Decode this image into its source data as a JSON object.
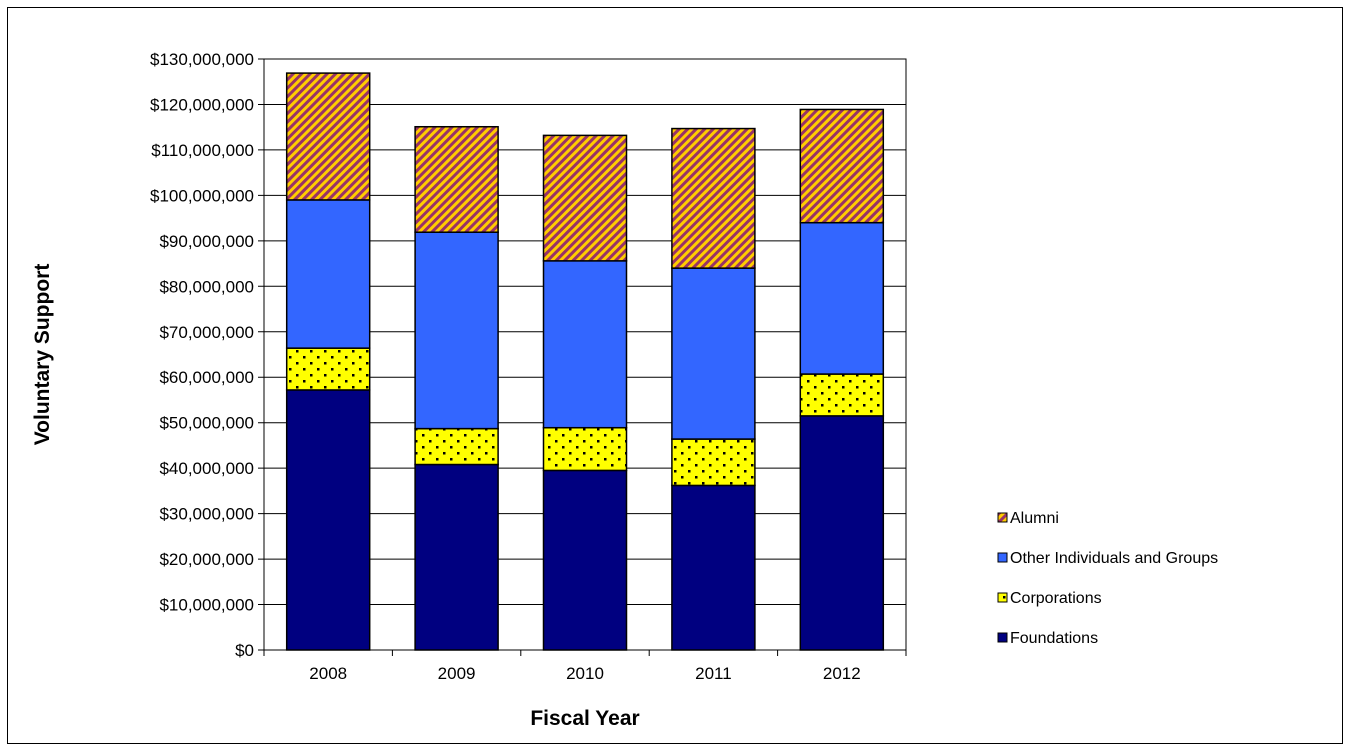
{
  "chart_data": {
    "type": "bar",
    "stacked": true,
    "title": "",
    "xlabel": "Fiscal Year",
    "ylabel": "Voluntary Support",
    "categories": [
      "2008",
      "2009",
      "2010",
      "2011",
      "2012"
    ],
    "ylim": [
      0,
      130000000
    ],
    "ytick_step": 10000000,
    "yticks": [
      "$0",
      "$10,000,000",
      "$20,000,000",
      "$30,000,000",
      "$40,000,000",
      "$50,000,000",
      "$60,000,000",
      "$70,000,000",
      "$80,000,000",
      "$90,000,000",
      "$100,000,000",
      "$110,000,000",
      "$120,000,000",
      "$130,000,000"
    ],
    "grid": true,
    "legend_position": "right",
    "series": [
      {
        "name": "Foundations",
        "color": "#000080",
        "pattern": "solid",
        "values": [
          57200000,
          40800000,
          39500000,
          36200000,
          51500000
        ]
      },
      {
        "name": "Corporations",
        "color": "#ffff00",
        "pattern": "dots",
        "values": [
          9200000,
          7900000,
          9400000,
          10200000,
          9200000
        ]
      },
      {
        "name": "Other Individuals and Groups",
        "color": "#3366ff",
        "pattern": "solid",
        "values": [
          32600000,
          43200000,
          36700000,
          37600000,
          33300000
        ]
      },
      {
        "name": "Alumni",
        "color": "#993366",
        "pattern": "diagonal-stripes",
        "secondary_color": "#ffcc00",
        "values": [
          27900000,
          23200000,
          27600000,
          30700000,
          24900000
        ]
      }
    ],
    "legend_order": [
      "Alumni",
      "Other Individuals and Groups",
      "Corporations",
      "Foundations"
    ]
  }
}
